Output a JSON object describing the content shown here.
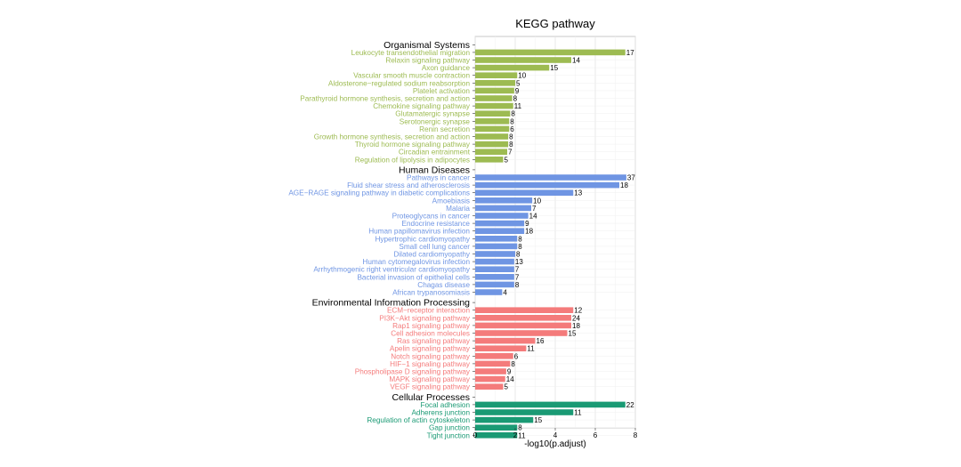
{
  "chart_data": {
    "type": "bar",
    "orientation": "horizontal",
    "title": "KEGG pathway",
    "xlabel": "-log10(p.adjust)",
    "ylabel": "",
    "xlim": [
      0,
      8
    ],
    "xticks": [
      0,
      2,
      4,
      6,
      8
    ],
    "grid": true,
    "groups": [
      {
        "name": "Organismal Systems",
        "color": "#9dbb52",
        "items": [
          {
            "label": "Leukocyte transendothelial migration",
            "value": 7.5,
            "count": 17
          },
          {
            "label": "Relaxin signaling pathway",
            "value": 4.8,
            "count": 14
          },
          {
            "label": "Axon guidance",
            "value": 3.7,
            "count": 15
          },
          {
            "label": "Vascular smooth muscle contraction",
            "value": 2.1,
            "count": 10
          },
          {
            "label": "Aldosterone−regulated sodium reabsorption",
            "value": 2.0,
            "count": 5
          },
          {
            "label": "Platelet activation",
            "value": 1.95,
            "count": 9
          },
          {
            "label": "Parathyroid hormone synthesis, secretion and action",
            "value": 1.85,
            "count": 8
          },
          {
            "label": "Chemokine signaling pathway",
            "value": 1.9,
            "count": 11
          },
          {
            "label": "Glutamatergic synapse",
            "value": 1.75,
            "count": 8
          },
          {
            "label": "Serotonergic synapse",
            "value": 1.7,
            "count": 8
          },
          {
            "label": "Renin secretion",
            "value": 1.7,
            "count": 6
          },
          {
            "label": "Growth hormone synthesis, secretion and action",
            "value": 1.65,
            "count": 8
          },
          {
            "label": "Thyroid hormone signaling pathway",
            "value": 1.65,
            "count": 8
          },
          {
            "label": "Circadian entrainment",
            "value": 1.6,
            "count": 7
          },
          {
            "label": "Regulation of lipolysis in adipocytes",
            "value": 1.4,
            "count": 5
          }
        ]
      },
      {
        "name": "Human Diseases",
        "color": "#6f95e3",
        "items": [
          {
            "label": "Pathways in cancer",
            "value": 7.55,
            "count": 37
          },
          {
            "label": "Fluid shear stress and atherosclerosis",
            "value": 7.2,
            "count": 18
          },
          {
            "label": "AGE−RAGE signaling pathway in diabetic complications",
            "value": 4.9,
            "count": 13
          },
          {
            "label": "Amoebiasis",
            "value": 2.85,
            "count": 10
          },
          {
            "label": "Malaria",
            "value": 2.8,
            "count": 7
          },
          {
            "label": "Proteoglycans in cancer",
            "value": 2.65,
            "count": 14
          },
          {
            "label": "Endocrine resistance",
            "value": 2.45,
            "count": 9
          },
          {
            "label": "Human papillomavirus infection",
            "value": 2.45,
            "count": 18
          },
          {
            "label": "Hypertrophic cardiomyopathy",
            "value": 2.1,
            "count": 8
          },
          {
            "label": "Small cell lung cancer",
            "value": 2.1,
            "count": 8
          },
          {
            "label": "Dilated cardiomyopathy",
            "value": 2.0,
            "count": 8
          },
          {
            "label": "Human cytomegalovirus infection",
            "value": 1.95,
            "count": 13
          },
          {
            "label": "Arrhythmogenic right ventricular cardiomyopathy",
            "value": 1.95,
            "count": 7
          },
          {
            "label": "Bacterial invasion of epithelial cells",
            "value": 1.95,
            "count": 7
          },
          {
            "label": "Chagas disease",
            "value": 1.95,
            "count": 8
          },
          {
            "label": "African trypanosomiasis",
            "value": 1.35,
            "count": 4
          }
        ]
      },
      {
        "name": "Environmental Information Processing",
        "color": "#f47b7b",
        "items": [
          {
            "label": "ECM−receptor interaction",
            "value": 4.9,
            "count": 12
          },
          {
            "label": "PI3K−Akt signaling pathway",
            "value": 4.8,
            "count": 24
          },
          {
            "label": "Rap1 signaling pathway",
            "value": 4.8,
            "count": 18
          },
          {
            "label": "Cell adhesion molecules",
            "value": 4.6,
            "count": 15
          },
          {
            "label": "Ras signaling pathway",
            "value": 3.0,
            "count": 16
          },
          {
            "label": "Apelin signaling pathway",
            "value": 2.55,
            "count": 11
          },
          {
            "label": "Notch signaling pathway",
            "value": 1.9,
            "count": 6
          },
          {
            "label": "HIF−1 signaling pathway",
            "value": 1.75,
            "count": 8
          },
          {
            "label": "Phospholipase D signaling pathway",
            "value": 1.55,
            "count": 9
          },
          {
            "label": "MAPK signaling pathway",
            "value": 1.5,
            "count": 14
          },
          {
            "label": "VEGF signaling pathway",
            "value": 1.4,
            "count": 5
          }
        ]
      },
      {
        "name": "Cellular Processes",
        "color": "#1a9a74",
        "items": [
          {
            "label": "Focal adhesion",
            "value": 7.5,
            "count": 22
          },
          {
            "label": "Adherens junction",
            "value": 4.9,
            "count": 11
          },
          {
            "label": "Regulation of actin cytoskeleton",
            "value": 2.9,
            "count": 15
          },
          {
            "label": "Gap junction",
            "value": 2.1,
            "count": 8
          },
          {
            "label": "Tight junction",
            "value": 2.1,
            "count": 11
          }
        ]
      }
    ]
  }
}
